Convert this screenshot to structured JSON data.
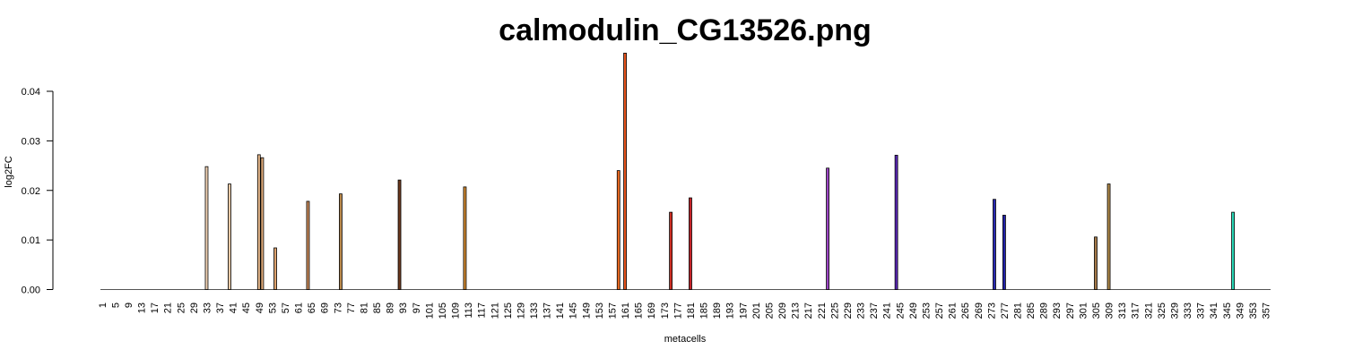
{
  "chart_data": {
    "type": "bar",
    "title": "calmodulin_CG13526.png",
    "xlabel": "metacells",
    "ylabel": "log2FC",
    "ylim": [
      0,
      0.048
    ],
    "yticks": [
      "0.00",
      "0.01",
      "0.02",
      "0.03",
      "0.04"
    ],
    "x_first": 1,
    "x_last": 358,
    "x_tick_labels": [
      "1",
      "5",
      "9",
      "13",
      "17",
      "21",
      "25",
      "29",
      "33",
      "37",
      "41",
      "45",
      "49",
      "53",
      "57",
      "61",
      "65",
      "69",
      "73",
      "77",
      "81",
      "85",
      "89",
      "93",
      "97",
      "101",
      "105",
      "109",
      "113",
      "117",
      "121",
      "125",
      "129",
      "133",
      "137",
      "141",
      "145",
      "149",
      "153",
      "157",
      "161",
      "165",
      "169",
      "173",
      "177",
      "181",
      "185",
      "189",
      "193",
      "197",
      "201",
      "205",
      "209",
      "213",
      "217",
      "221",
      "225",
      "229",
      "233",
      "237",
      "241",
      "245",
      "249",
      "253",
      "257",
      "261",
      "265",
      "269",
      "273",
      "277",
      "281",
      "285",
      "289",
      "293",
      "297",
      "301",
      "305",
      "309",
      "313",
      "317",
      "321",
      "325",
      "329",
      "333",
      "337",
      "341",
      "345",
      "349",
      "353",
      "357"
    ],
    "grid": false,
    "legend": "none",
    "bars": [
      {
        "x": 33,
        "value": 0.0248,
        "color": "#f0d2b4"
      },
      {
        "x": 40,
        "value": 0.0213,
        "color": "#e9c8a4"
      },
      {
        "x": 49,
        "value": 0.0272,
        "color": "#e7b88c"
      },
      {
        "x": 50,
        "value": 0.0266,
        "color": "#e2ad7c"
      },
      {
        "x": 54,
        "value": 0.0084,
        "color": "#dca06c"
      },
      {
        "x": 64,
        "value": 0.0178,
        "color": "#c98a5a"
      },
      {
        "x": 74,
        "value": 0.0193,
        "color": "#b9884a"
      },
      {
        "x": 92,
        "value": 0.0221,
        "color": "#6e3a1e"
      },
      {
        "x": 112,
        "value": 0.0207,
        "color": "#d28a32"
      },
      {
        "x": 159,
        "value": 0.024,
        "color": "#ee6a20"
      },
      {
        "x": 161,
        "value": 0.0477,
        "color": "#e5531c"
      },
      {
        "x": 175,
        "value": 0.0156,
        "color": "#cc2f24"
      },
      {
        "x": 181,
        "value": 0.0185,
        "color": "#c42228"
      },
      {
        "x": 223,
        "value": 0.0245,
        "color": "#9b45c3"
      },
      {
        "x": 244,
        "value": 0.0271,
        "color": "#5a28b5"
      },
      {
        "x": 274,
        "value": 0.0182,
        "color": "#2a2ab0"
      },
      {
        "x": 277,
        "value": 0.015,
        "color": "#2222a8"
      },
      {
        "x": 305,
        "value": 0.0106,
        "color": "#a37848"
      },
      {
        "x": 309,
        "value": 0.0213,
        "color": "#b08a4a"
      },
      {
        "x": 347,
        "value": 0.0156,
        "color": "#2ad6b6"
      }
    ]
  }
}
